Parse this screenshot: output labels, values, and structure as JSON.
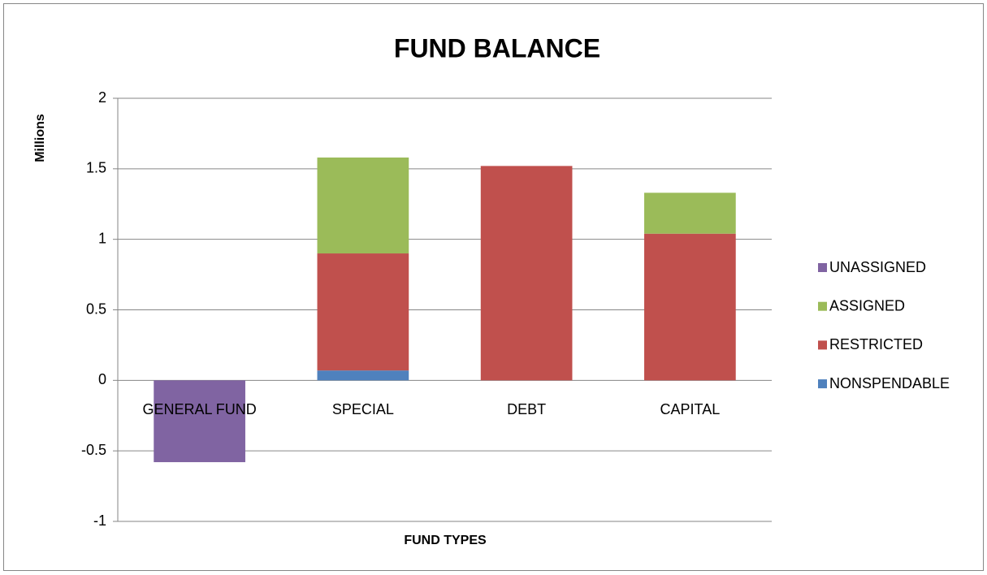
{
  "chart_data": {
    "type": "stacked_bar",
    "title": "FUND BALANCE",
    "x_label": "FUND TYPES",
    "y_label": "Millions",
    "categories": [
      "GENERAL FUND",
      "SPECIAL",
      "DEBT",
      "CAPITAL"
    ],
    "series": [
      {
        "name": "NONSPENDABLE",
        "color": "#4f81bd",
        "values": [
          0,
          0.07,
          0,
          0
        ]
      },
      {
        "name": "RESTRICTED",
        "color": "#c0504d",
        "values": [
          0,
          0.83,
          1.52,
          1.04
        ]
      },
      {
        "name": "ASSIGNED",
        "color": "#9bbb59",
        "values": [
          0,
          0.68,
          0,
          0.29
        ]
      },
      {
        "name": "UNASSIGNED",
        "color": "#8064a2",
        "values": [
          -0.58,
          0,
          0,
          0
        ]
      }
    ],
    "ylim": [
      -1,
      2
    ],
    "yticks": [
      -1,
      -0.5,
      0,
      0.5,
      1,
      1.5,
      2
    ],
    "grid": true,
    "legend": "right"
  }
}
